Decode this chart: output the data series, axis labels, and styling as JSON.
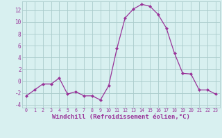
{
  "x": [
    0,
    1,
    2,
    3,
    4,
    5,
    6,
    7,
    8,
    9,
    10,
    11,
    12,
    13,
    14,
    15,
    16,
    17,
    18,
    19,
    20,
    21,
    22,
    23
  ],
  "y": [
    -2.5,
    -1.5,
    -0.5,
    -0.5,
    0.5,
    -2.2,
    -1.8,
    -2.5,
    -2.5,
    -3.2,
    -0.8,
    5.5,
    10.7,
    12.2,
    13.0,
    12.7,
    11.3,
    9.0,
    4.7,
    1.3,
    1.2,
    -1.5,
    -1.5,
    -2.2
  ],
  "line_color": "#993399",
  "marker": "D",
  "marker_size": 2,
  "xlabel": "Windchill (Refroidissement éolien,°C)",
  "xlabel_fontsize": 6.5,
  "bg_color": "#d8f0f0",
  "grid_color": "#aacccc",
  "tick_color": "#993399",
  "label_color": "#993399",
  "ylim": [
    -4.5,
    13.5
  ],
  "xlim": [
    -0.5,
    23.5
  ],
  "yticks": [
    -4,
    -2,
    0,
    2,
    4,
    6,
    8,
    10,
    12
  ],
  "xticks": [
    0,
    1,
    2,
    3,
    4,
    5,
    6,
    7,
    8,
    9,
    10,
    11,
    12,
    13,
    14,
    15,
    16,
    17,
    18,
    19,
    20,
    21,
    22,
    23
  ]
}
